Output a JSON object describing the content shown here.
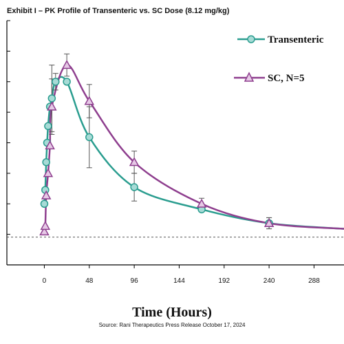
{
  "title": "Exhibit I – PK Profile of Transenteric vs. SC Dose (8.12 mg/kg)",
  "source": "Source: Rani Therapeutics Press Release October 17, 2024",
  "chart_data": {
    "type": "line",
    "title": "Exhibit I – PK Profile of Transenteric vs. SC Dose (8.12 mg/kg)",
    "xlabel": "Time (Hours)",
    "ylabel": "",
    "x_ticks": [
      0,
      48,
      96,
      144,
      192,
      240,
      288
    ],
    "xlim": [
      -40,
      320
    ],
    "ylim": [
      -1.0,
      7.8
    ],
    "y_tick_count": 8,
    "grid": false,
    "legend_position": "top-right",
    "baseline": {
      "y": 0,
      "style": "dashed"
    },
    "series": [
      {
        "name": "Transenteric",
        "color": "#2a9d8f",
        "marker": "circle",
        "points": [
          {
            "x": 0,
            "y": 1.2
          },
          {
            "x": 1,
            "y": 1.7
          },
          {
            "x": 2,
            "y": 2.7
          },
          {
            "x": 3,
            "y": 3.4
          },
          {
            "x": 4,
            "y": 4.0
          },
          {
            "x": 6,
            "y": 4.7
          },
          {
            "x": 8,
            "y": 5.0,
            "err": 1.2
          },
          {
            "x": 12,
            "y": 5.6,
            "err": 0.3
          },
          {
            "x": 24,
            "y": 5.6
          },
          {
            "x": 48,
            "y": 3.6,
            "err": 1.1
          },
          {
            "x": 96,
            "y": 1.8,
            "err": 0.5
          },
          {
            "x": 168,
            "y": 1.0
          },
          {
            "x": 240,
            "y": 0.5,
            "err": 0.2
          },
          {
            "x": 320,
            "y": 0.3
          }
        ]
      },
      {
        "name": "SC, N=5",
        "color": "#8e3e8e",
        "marker": "triangle",
        "points": [
          {
            "x": 0,
            "y": 0.2
          },
          {
            "x": 1,
            "y": 0.4
          },
          {
            "x": 2,
            "y": 1.5
          },
          {
            "x": 4,
            "y": 2.3
          },
          {
            "x": 6,
            "y": 3.3
          },
          {
            "x": 8,
            "y": 4.7,
            "err": 1.0
          },
          {
            "x": 24,
            "y": 6.2,
            "err": 0.4
          },
          {
            "x": 48,
            "y": 4.9,
            "err": 0.6
          },
          {
            "x": 96,
            "y": 2.7,
            "err": 0.4
          },
          {
            "x": 168,
            "y": 1.2,
            "err": 0.2
          },
          {
            "x": 240,
            "y": 0.5,
            "err": 0.2
          },
          {
            "x": 320,
            "y": 0.3
          }
        ]
      }
    ]
  }
}
